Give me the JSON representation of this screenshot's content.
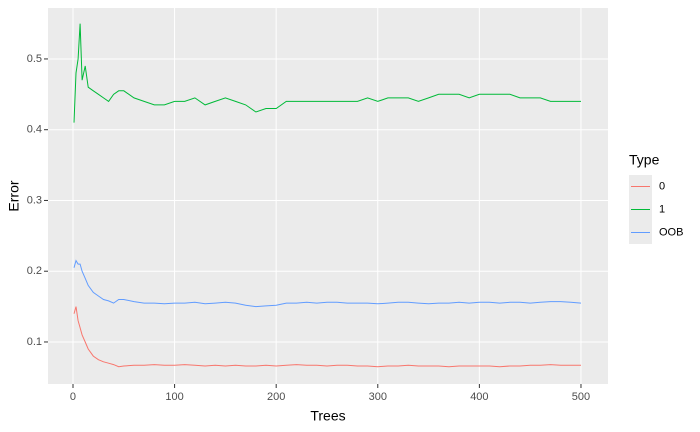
{
  "chart_data": {
    "type": "line",
    "x": [
      1,
      3,
      5,
      7,
      9,
      12,
      15,
      20,
      25,
      30,
      35,
      40,
      45,
      50,
      60,
      70,
      80,
      90,
      100,
      110,
      120,
      130,
      140,
      150,
      160,
      170,
      180,
      190,
      200,
      210,
      220,
      230,
      240,
      250,
      260,
      270,
      280,
      290,
      300,
      310,
      320,
      330,
      340,
      350,
      360,
      370,
      380,
      390,
      400,
      410,
      420,
      430,
      440,
      450,
      460,
      470,
      480,
      490,
      500
    ],
    "series": [
      {
        "name": "0",
        "color": "#F8766D",
        "values": [
          0.14,
          0.15,
          0.13,
          0.12,
          0.11,
          0.1,
          0.09,
          0.08,
          0.075,
          0.072,
          0.07,
          0.068,
          0.065,
          0.066,
          0.067,
          0.067,
          0.068,
          0.067,
          0.067,
          0.068,
          0.067,
          0.066,
          0.067,
          0.066,
          0.067,
          0.066,
          0.066,
          0.067,
          0.066,
          0.067,
          0.068,
          0.067,
          0.067,
          0.066,
          0.067,
          0.067,
          0.066,
          0.066,
          0.065,
          0.066,
          0.066,
          0.067,
          0.066,
          0.066,
          0.066,
          0.065,
          0.066,
          0.066,
          0.066,
          0.066,
          0.065,
          0.066,
          0.066,
          0.067,
          0.067,
          0.068,
          0.067,
          0.067,
          0.067
        ]
      },
      {
        "name": "1",
        "color": "#00BA38",
        "values": [
          0.41,
          0.48,
          0.5,
          0.55,
          0.47,
          0.49,
          0.46,
          0.455,
          0.45,
          0.445,
          0.44,
          0.45,
          0.455,
          0.455,
          0.445,
          0.44,
          0.435,
          0.435,
          0.44,
          0.44,
          0.445,
          0.435,
          0.44,
          0.445,
          0.44,
          0.435,
          0.425,
          0.43,
          0.43,
          0.44,
          0.44,
          0.44,
          0.44,
          0.44,
          0.44,
          0.44,
          0.44,
          0.445,
          0.44,
          0.445,
          0.445,
          0.445,
          0.44,
          0.445,
          0.45,
          0.45,
          0.45,
          0.445,
          0.45,
          0.45,
          0.45,
          0.45,
          0.445,
          0.445,
          0.445,
          0.44,
          0.44,
          0.44,
          0.44
        ]
      },
      {
        "name": "OOB",
        "color": "#619CFF",
        "values": [
          0.205,
          0.215,
          0.21,
          0.21,
          0.2,
          0.19,
          0.18,
          0.17,
          0.165,
          0.16,
          0.158,
          0.155,
          0.16,
          0.16,
          0.157,
          0.155,
          0.155,
          0.154,
          0.155,
          0.155,
          0.156,
          0.154,
          0.155,
          0.156,
          0.155,
          0.152,
          0.15,
          0.151,
          0.152,
          0.155,
          0.155,
          0.156,
          0.155,
          0.156,
          0.156,
          0.155,
          0.155,
          0.155,
          0.154,
          0.155,
          0.156,
          0.156,
          0.155,
          0.154,
          0.155,
          0.155,
          0.156,
          0.155,
          0.156,
          0.156,
          0.155,
          0.156,
          0.156,
          0.155,
          0.156,
          0.157,
          0.157,
          0.156,
          0.155
        ]
      }
    ],
    "xlabel": "Trees",
    "ylabel": "Error",
    "legend_title": "Type",
    "xlim": [
      -24.6,
      526.6
    ],
    "ylim": [
      0.0406,
      0.572
    ],
    "xticks": [
      0,
      100,
      200,
      300,
      400,
      500
    ],
    "yticks": [
      0.1,
      0.2,
      0.3,
      0.4,
      0.5
    ],
    "grid": true
  }
}
